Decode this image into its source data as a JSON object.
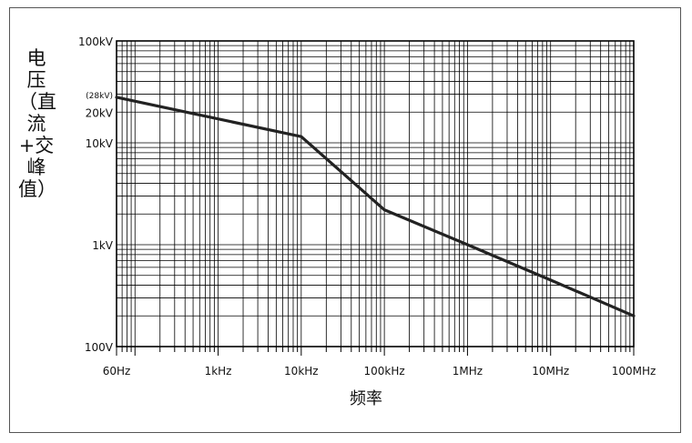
{
  "chart_data": {
    "type": "line",
    "title": "",
    "xlabel": "频率",
    "ylabel": "电压（直流+交峰值）",
    "x_scale": "log",
    "y_scale": "log",
    "xlim": [
      60,
      100000000
    ],
    "ylim": [
      100,
      100000
    ],
    "grid": true,
    "x_tick_labels": [
      {
        "value": 60,
        "label": "60Hz"
      },
      {
        "value": 1000,
        "label": "1kHz"
      },
      {
        "value": 10000,
        "label": "10kHz"
      },
      {
        "value": 100000,
        "label": "100kHz"
      },
      {
        "value": 1000000,
        "label": "1MHz"
      },
      {
        "value": 10000000,
        "label": "10MHz"
      },
      {
        "value": 100000000,
        "label": "100MHz"
      }
    ],
    "y_tick_labels": [
      {
        "value": 100,
        "label": "100V"
      },
      {
        "value": 1000,
        "label": "1kV"
      },
      {
        "value": 10000,
        "label": "10kV"
      },
      {
        "value": 20000,
        "label": "20kV"
      },
      {
        "value": 100000,
        "label": "100kV"
      }
    ],
    "annotations": [
      {
        "x": 60,
        "y": 28000,
        "text": "(28kV)"
      }
    ],
    "series": [
      {
        "x": [
          60,
          10000,
          100000,
          1000000,
          10000000,
          100000000
        ],
        "y": [
          28000,
          11500,
          2200,
          1000,
          450,
          200
        ]
      }
    ]
  }
}
